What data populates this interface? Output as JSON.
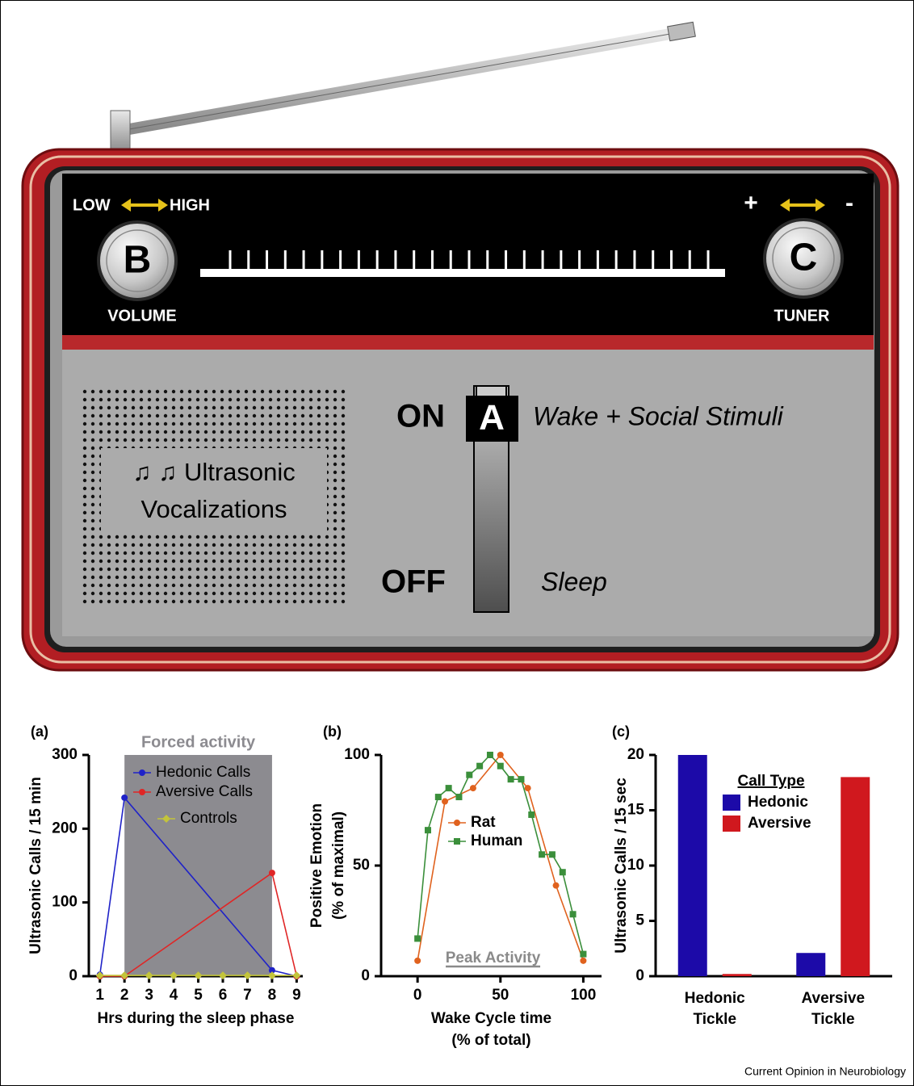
{
  "illustration": {
    "volume_low": "LOW",
    "volume_high": "HIGH",
    "volume_knob": "B",
    "volume_label": "VOLUME",
    "tuner_plus": "+",
    "tuner_minus": "-",
    "tuner_knob": "C",
    "tuner_label": "TUNER",
    "switch_on": "ON",
    "switch_knob": "A",
    "switch_off": "OFF",
    "on_label": "Wake + Social Stimuli",
    "off_label": "Sleep",
    "speaker_line1": "♫ ♫ Ultrasonic",
    "speaker_line2": "Vocalizations"
  },
  "chart_data": [
    {
      "type": "line",
      "panel": "(a)",
      "ylabel": "Ultrasonic Calls / 15 min",
      "xlabel": "Hrs during the sleep phase",
      "xlim": [
        0.55,
        9.25
      ],
      "xticks": [
        1,
        2,
        3,
        4,
        5,
        6,
        7,
        8,
        9
      ],
      "ylim": [
        0,
        300
      ],
      "yticks": [
        0,
        100,
        200,
        300
      ],
      "shade": {
        "label": "Forced activity",
        "range": [
          2,
          8
        ],
        "color": "#8c8b90"
      },
      "series": [
        {
          "name": "Hedonic Calls",
          "color": "#1f22c8",
          "marker": "circle",
          "x": [
            1,
            2,
            8,
            9
          ],
          "values": [
            2,
            242,
            8,
            0
          ]
        },
        {
          "name": "Aversive Calls",
          "color": "#e02626",
          "marker": "circle",
          "x": [
            1,
            2,
            8,
            9
          ],
          "values": [
            0,
            0,
            140,
            0
          ]
        },
        {
          "name": "Controls",
          "color": "#c3c43a",
          "marker": "diamond",
          "x": [
            1,
            2,
            3,
            4,
            5,
            6,
            7,
            8,
            9
          ],
          "values": [
            1,
            1,
            1,
            1,
            1,
            1,
            1,
            1,
            1
          ]
        }
      ]
    },
    {
      "type": "line",
      "panel": "(b)",
      "ylabel": [
        "Positive Emotion",
        "(% of maximal)"
      ],
      "xlabel": [
        "Wake Cycle time",
        "(% of total)"
      ],
      "xlim": [
        -22,
        111
      ],
      "xticks": [
        0,
        50,
        100
      ],
      "ylim": [
        0,
        100
      ],
      "yticks": [
        0,
        50,
        100
      ],
      "peak": {
        "label": "Peak Activity",
        "range": [
          17,
          74
        ],
        "color": "#8a8a8a"
      },
      "series": [
        {
          "name": "Rat",
          "color": "#e0621e",
          "marker": "circle",
          "x": [
            0,
            16.5,
            33.5,
            50,
            66.5,
            83.5,
            100
          ],
          "values": [
            7,
            79,
            85,
            100,
            85,
            41,
            7
          ]
        },
        {
          "name": "Human",
          "color": "#3b8f3b",
          "marker": "square",
          "x": [
            0,
            6.25,
            12.5,
            18.75,
            25,
            31.25,
            37.5,
            43.75,
            50,
            56.25,
            62.5,
            68.75,
            75,
            81.25,
            87.5,
            93.75,
            100
          ],
          "values": [
            17,
            66,
            81,
            85,
            81,
            91,
            95,
            100,
            95,
            89,
            89,
            73,
            55,
            55,
            47,
            28,
            10
          ]
        }
      ]
    },
    {
      "type": "bar",
      "panel": "(c)",
      "ylabel": "Ultrasonic Calls / 15 sec",
      "legend_title": "Call Type",
      "categories": [
        "Hedonic Tickle",
        "Aversive Tickle"
      ],
      "ylim": [
        0,
        20
      ],
      "yticks": [
        0,
        5,
        10,
        15,
        20
      ],
      "series": [
        {
          "name": "Hedonic",
          "color": "#1c0aa8",
          "values": [
            20,
            2.1
          ]
        },
        {
          "name": "Aversive",
          "color": "#d0181e",
          "values": [
            0.2,
            18
          ]
        }
      ]
    }
  ],
  "credit": "Current Opinion in Neurobiology"
}
